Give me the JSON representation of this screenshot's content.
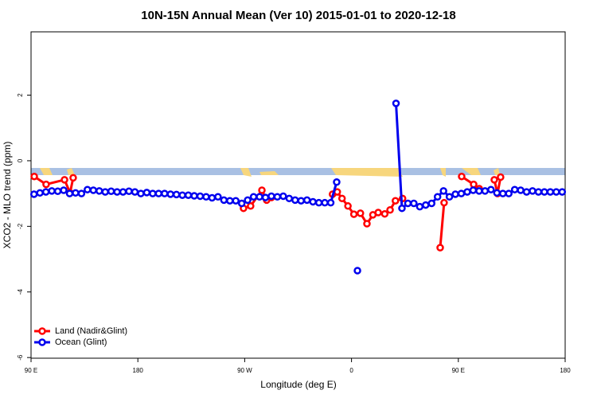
{
  "chart_data": {
    "type": "line",
    "title": "10N-15N Annual Mean (Ver 10)   2015-01-01 to 2020-12-18",
    "x_label": "Longitude (deg E)",
    "y_label": "XCO2 - MLO trend (ppm)",
    "xlim": [
      90,
      540
    ],
    "xticks": [
      {
        "value": 90,
        "label": "90 E"
      },
      180,
      {
        "value": 270,
        "label": "90 W"
      },
      {
        "value": 360,
        "label": "0"
      },
      {
        "value": 450,
        "label": "90 E"
      },
      {
        "value": 540,
        "label": "180"
      }
    ],
    "ylim": [
      -6.02,
      3.93
    ],
    "yticks": [
      2,
      0,
      -2,
      -4,
      -6
    ],
    "legend": "bottom-left",
    "series": [
      {
        "name": "Land (Nadir&Glint)",
        "color": "#ff0000",
        "x": [
          92.7,
          102.7,
          118.2,
          122.9,
          125.5,
          null,
          269,
          275,
          284.5,
          288.5,
          292.5,
          null,
          344,
          348,
          352,
          357,
          362,
          367.5,
          373,
          378,
          382.5,
          388,
          392.5,
          397,
          403,
          null,
          434.7,
          438,
          null,
          452.8,
          462.9,
          467.6,
          null,
          480.3,
          483,
          485.6
        ],
        "values": [
          -0.48,
          -0.72,
          -0.58,
          -0.98,
          -0.52,
          null,
          -1.45,
          -1.38,
          -0.9,
          -1.2,
          -1.12,
          null,
          -1.02,
          -0.95,
          -1.15,
          -1.38,
          -1.63,
          -1.6,
          -1.92,
          -1.65,
          -1.58,
          -1.62,
          -1.5,
          -1.22,
          -1.15,
          null,
          -2.65,
          -1.28,
          null,
          -0.48,
          -0.72,
          -0.85,
          null,
          -0.58,
          -1.0,
          -0.5
        ]
      },
      {
        "name": "Ocean (Glint)",
        "color": "#0000ee",
        "x": [
          92.5,
          97.5,
          102.5,
          107.5,
          112.5,
          117.5,
          122.5,
          127.5,
          132.5,
          137.5,
          142.5,
          147.5,
          152.5,
          157.5,
          162.5,
          167.5,
          172.5,
          177.5,
          182.5,
          187.5,
          192.5,
          197.5,
          202.5,
          207.5,
          212.5,
          217.5,
          222.5,
          227.5,
          232.5,
          237.5,
          242.5,
          247.5,
          252.5,
          257.5,
          262.5,
          267.5,
          272.5,
          277.5,
          282.5,
          287.5,
          292.5,
          297.5,
          302.5,
          307.5,
          312.5,
          317.5,
          322.5,
          327.5,
          332.5,
          337.5,
          342.5,
          347.5,
          352.5,
          357.5,
          365,
          367.5,
          372.5,
          377.5,
          382.5,
          387.5,
          392.5,
          397.5,
          402.5,
          407.5,
          412.5,
          417.5,
          422.5,
          427.5,
          432.5,
          437.5,
          442.5,
          447.5,
          452.5,
          457.5,
          462.5,
          467.5,
          472.5,
          477.5,
          482.5,
          487.5,
          492.5,
          497.5,
          502.5,
          507.5,
          512.5,
          517.5,
          522.5,
          527.5,
          532.5,
          537.5
        ],
        "values": [
          -1.02,
          -0.98,
          -0.95,
          -0.92,
          -0.93,
          -0.9,
          -1.0,
          -0.98,
          -1.0,
          -0.88,
          -0.9,
          -0.92,
          -0.95,
          -0.93,
          -0.95,
          -0.95,
          -0.93,
          -0.95,
          -1.0,
          -0.97,
          -1.0,
          -1.0,
          -1.0,
          -1.02,
          -1.03,
          -1.05,
          -1.05,
          -1.07,
          -1.08,
          -1.1,
          -1.13,
          -1.1,
          -1.2,
          -1.22,
          -1.22,
          -1.3,
          -1.2,
          -1.1,
          -1.1,
          -1.12,
          -1.08,
          -1.1,
          -1.08,
          -1.15,
          -1.2,
          -1.22,
          -1.2,
          -1.25,
          -1.28,
          -1.28,
          -1.28,
          -0.65,
          null,
          null,
          -3.35,
          null,
          null,
          null,
          null,
          null,
          null,
          1.75,
          -1.45,
          -1.3,
          -1.3,
          -1.4,
          -1.35,
          -1.3,
          -1.1,
          -0.92,
          -1.1,
          -1.02,
          -1.0,
          -0.95,
          -0.9,
          -0.92,
          -0.92,
          -0.88,
          -0.98,
          -1.0,
          -1.0,
          -0.88,
          -0.9,
          -0.95,
          -0.92,
          -0.95,
          -0.95,
          -0.95,
          -0.95,
          -0.95
        ]
      }
    ]
  }
}
